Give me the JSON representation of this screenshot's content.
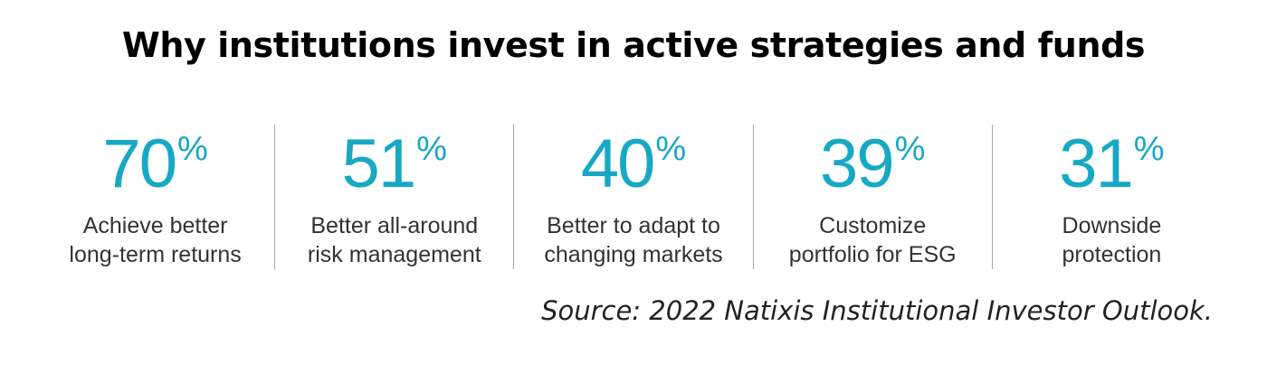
{
  "title": "Why institutions invest in active strategies and funds",
  "accent_color": "#17a8c4",
  "stats": [
    {
      "number": "70",
      "unit": "%",
      "label": "Achieve better\nlong-term returns"
    },
    {
      "number": "51",
      "unit": "%",
      "label": "Better all-around\nrisk management"
    },
    {
      "number": "40",
      "unit": "%",
      "label": "Better to adapt to\nchanging markets"
    },
    {
      "number": "39",
      "unit": "%",
      "label": "Customize\nportfolio for ESG"
    },
    {
      "number": "31",
      "unit": "%",
      "label": "Downside\nprotection"
    }
  ],
  "source": "Source: 2022 Natixis Institutional Investor Outlook."
}
